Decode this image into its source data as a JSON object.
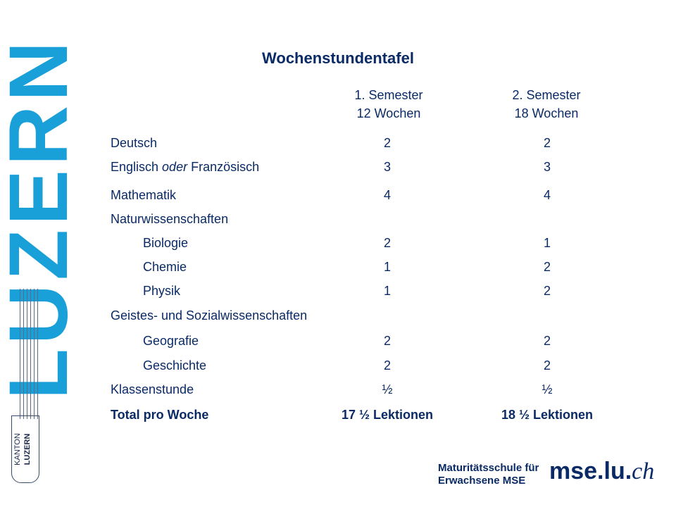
{
  "brand": {
    "wordmark": "LUZERN",
    "stamp_top": "KANTON",
    "stamp_bottom": "LUZERN"
  },
  "title": "Wochenstundentafel",
  "columns": [
    {
      "line1": "1. Semester",
      "line2": "12 Wochen"
    },
    {
      "line1": "2. Semester",
      "line2": "18 Wochen"
    }
  ],
  "rows": {
    "r0": {
      "label": "Deutsch",
      "v1": "2",
      "v2": "2"
    },
    "r1": {
      "label_a": "Englisch ",
      "label_em": "oder",
      "label_b": " Französisch",
      "v1": "3",
      "v2": "3"
    },
    "r2": {
      "label": "Mathematik",
      "v1": "4",
      "v2": "4"
    },
    "r3": {
      "label": "Naturwissenschaften"
    },
    "r4": {
      "label": "Biologie",
      "v1": "2",
      "v2": "1"
    },
    "r5": {
      "label": "Chemie",
      "v1": "1",
      "v2": "2"
    },
    "r6": {
      "label": "Physik",
      "v1": "1",
      "v2": "2"
    },
    "r7": {
      "label": "Geistes- und Sozialwissenschaften"
    },
    "r8": {
      "label": "Geografie",
      "v1": "2",
      "v2": "2"
    },
    "r9": {
      "label": "Geschichte",
      "v1": "2",
      "v2": "2"
    },
    "r10": {
      "label": "Klassenstunde",
      "v1": "½",
      "v2": "½"
    },
    "total": {
      "label": "Total pro Woche",
      "v1": "17 ½ Lektionen",
      "v2": "18 ½ Lektionen"
    }
  },
  "footer": {
    "school_line1": "Maturitätsschule für",
    "school_line2": "Erwachsene MSE",
    "site_main": "mse.lu.",
    "site_tld": "ch"
  },
  "colors": {
    "text": "#0a2a66",
    "brand_blue": "#1aa0d8"
  }
}
